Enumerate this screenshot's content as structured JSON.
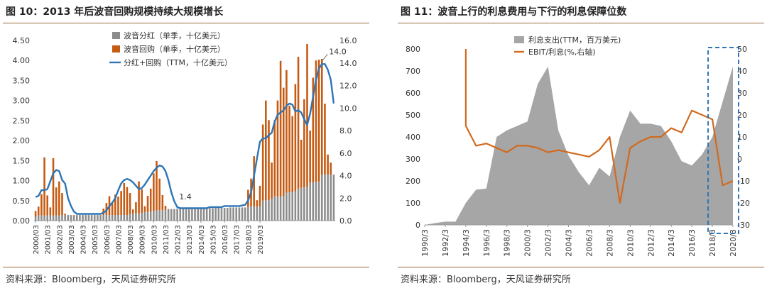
{
  "left": {
    "title": "图 10：2013 年后波音回购规模持续大规模增长",
    "source": "资料来源：Bloomberg，天风证券研究所",
    "chart_data": {
      "type": "bar",
      "stacked": true,
      "series": [
        {
          "name": "波音分红（单季，十亿美元）",
          "axis": "left",
          "color": "#8c8c8c",
          "values": [
            0.1,
            0.13,
            0.13,
            0.13,
            0.13,
            0.13,
            0.13,
            0.13,
            0.13,
            0.14,
            0.14,
            0.14,
            0.14,
            0.14,
            0.14,
            0.14,
            0.14,
            0.14,
            0.14,
            0.14,
            0.14,
            0.14,
            0.14,
            0.14,
            0.14,
            0.14,
            0.14,
            0.14,
            0.14,
            0.14,
            0.14,
            0.14,
            0.16,
            0.18,
            0.18,
            0.18,
            0.19,
            0.22,
            0.22,
            0.22,
            0.24,
            0.26,
            0.26,
            0.26,
            0.27,
            0.29,
            0.29,
            0.29,
            0.3,
            0.3,
            0.3,
            0.3,
            0.3,
            0.3,
            0.3,
            0.3,
            0.3,
            0.31,
            0.31,
            0.31,
            0.31,
            0.32,
            0.32,
            0.32,
            0.32,
            0.32,
            0.33,
            0.33,
            0.33,
            0.33,
            0.33,
            0.33,
            0.34,
            0.35,
            0.35,
            0.35,
            0.36,
            0.5,
            0.51,
            0.51,
            0.55,
            0.61,
            0.6,
            0.6,
            0.62,
            0.7,
            0.71,
            0.71,
            0.73,
            0.8,
            0.82,
            0.83,
            0.84,
            0.95,
            0.96,
            0.96,
            0.98,
            1.15,
            1.15,
            1.15,
            1.15,
            1.15
          ]
        },
        {
          "name": "波音回购（单季，十亿美元）",
          "axis": "left",
          "color": "#c55a11",
          "values": [
            0.14,
            0.22,
            0.53,
            1.45,
            0.5,
            0.2,
            1.43,
            0.7,
            0.85,
            0.55,
            0.03,
            0.0,
            0.0,
            0.0,
            0.0,
            0.0,
            0.0,
            0.0,
            0.0,
            0.0,
            0.0,
            0.0,
            0.0,
            0.16,
            0.3,
            0.47,
            0.3,
            0.51,
            0.46,
            0.6,
            0.8,
            0.7,
            0.53,
            0.1,
            0.28,
            0.8,
            0.59,
            0.14,
            0.4,
            0.58,
            0.94,
            1.23,
            0.79,
            0.38,
            0.1,
            0.0,
            0.0,
            0.0,
            0.0,
            0.0,
            0.0,
            0.0,
            0.0,
            0.0,
            0.0,
            0.0,
            0.0,
            0.0,
            0.0,
            0.0,
            0.0,
            0.0,
            0.0,
            0.0,
            0.0,
            0.0,
            0.0,
            0.0,
            0.0,
            0.0,
            0.0,
            0.0,
            0.43,
            0.7,
            1.26,
            0.16,
            0.51,
            1.9,
            2.49,
            2.0,
            0.9,
            1.9,
            2.4,
            3.39,
            2.7,
            3.06,
            2.16,
            1.9,
            2.68,
            3.29,
            1.2,
            2.2,
            3.57,
            1.3,
            2.61,
            3.04,
            3.04,
            2.89,
            1.77,
            0.5,
            0.3,
            0.0
          ]
        },
        {
          "name": "分红+回购（TTM，十亿美元）",
          "axis": "right",
          "type": "line",
          "color": "#2e75b6",
          "values": [
            2.1,
            2.2,
            2.7,
            2.7,
            2.8,
            3.5,
            4.2,
            4.5,
            4.4,
            3.6,
            3.3,
            2.0,
            1.3,
            0.8,
            0.6,
            0.6,
            0.6,
            0.6,
            0.6,
            0.6,
            0.6,
            0.6,
            0.6,
            0.7,
            0.9,
            1.3,
            1.6,
            2.0,
            2.7,
            3.3,
            3.6,
            3.7,
            3.6,
            3.4,
            3.1,
            2.8,
            2.9,
            3.2,
            3.6,
            4.0,
            4.4,
            4.7,
            4.9,
            4.8,
            4.4,
            3.6,
            2.5,
            1.7,
            1.2,
            1.1,
            1.1,
            1.1,
            1.1,
            1.1,
            1.1,
            1.1,
            1.1,
            1.1,
            1.1,
            1.2,
            1.2,
            1.2,
            1.2,
            1.2,
            1.3,
            1.3,
            1.3,
            1.3,
            1.3,
            1.3,
            1.35,
            1.4,
            1.8,
            2.5,
            4.0,
            5.5,
            7.0,
            7.3,
            7.3,
            7.6,
            7.8,
            8.8,
            9.4,
            9.6,
            9.8,
            10.2,
            10.4,
            10.3,
            9.7,
            9.8,
            9.6,
            9.0,
            8.5,
            9.5,
            11.0,
            12.5,
            13.5,
            13.9,
            13.9,
            13.4,
            12.5,
            10.4
          ]
        }
      ],
      "categories": [
        "2000/03",
        "2000/06",
        "2000/09",
        "2000/12",
        "2001/03",
        "2001/06",
        "2001/09",
        "2001/12",
        "2002/03",
        "2002/06",
        "2002/09",
        "2002/12",
        "2003/03",
        "2003/06",
        "2003/09",
        "2003/12",
        "2004/03",
        "2004/06",
        "2004/09",
        "2004/12",
        "2005/03",
        "2005/06",
        "2005/09",
        "2005/12",
        "2006/03",
        "2006/06",
        "2006/09",
        "2006/12",
        "2007/03",
        "2007/06",
        "2007/09",
        "2007/12",
        "2008/03",
        "2008/06",
        "2008/09",
        "2008/12",
        "2009/03",
        "2009/06",
        "2009/09",
        "2009/12",
        "2010/03",
        "2010/06",
        "2010/09",
        "2010/12",
        "2011/03",
        "2011/06",
        "2011/09",
        "2011/12",
        "2012/03",
        "2012/06",
        "2012/09",
        "2012/12",
        "2013/03",
        "2013/06",
        "2013/09",
        "2013/12",
        "2014/03",
        "2014/06",
        "2014/09",
        "2014/12",
        "2015/03",
        "2015/06",
        "2015/09",
        "2015/12",
        "2016/03",
        "2016/06",
        "2016/09",
        "2016/12",
        "2017/03",
        "2017/06",
        "2017/09",
        "2017/12",
        "2018/03",
        "2018/06",
        "2018/09",
        "2018/12",
        "2019/03",
        "2019/06",
        "2019/09",
        "2019/12",
        "2020/03",
        "2020/06",
        "2020/09",
        "2020/12",
        "2021/03",
        "2021/06",
        "2021/09",
        "2021/12",
        "2022/03",
        "2022/06",
        "2022/09",
        "2022/12",
        "2023/03",
        "2023/06",
        "2023/09",
        "2023/12",
        "2024/03",
        "2024/06",
        "2024/09",
        "2024/12",
        "2025/03",
        "2025/06"
      ],
      "xtick_labels": [
        "2000/03",
        "2001/03",
        "2002/03",
        "2003/03",
        "2004/03",
        "2005/03",
        "2006/03",
        "2007/03",
        "2008/03",
        "2009/03",
        "2010/03",
        "2011/03",
        "2012/03",
        "2013/03",
        "2014/03",
        "2015/03",
        "2016/03",
        "2017/03",
        "2018/03",
        "2019/03"
      ],
      "ylim_left": [
        0,
        4.5
      ],
      "yticks_left": [
        "0.00",
        "0.50",
        "1.00",
        "1.50",
        "2.00",
        "2.50",
        "3.00",
        "3.50",
        "4.00",
        "4.50"
      ],
      "ylim_right": [
        0,
        16
      ],
      "yticks_right": [
        "0.0",
        "2.0",
        "4.0",
        "6.0",
        "8.0",
        "10.0",
        "12.0",
        "14.0",
        "16.0"
      ],
      "annotations": [
        "14.0",
        "1.4"
      ],
      "legend": "top-center"
    }
  },
  "right": {
    "title": "图 11：波音上行的利息费用与下行的利息保障位数",
    "source": "资料来源：Bloomberg，天风证券研究所",
    "chart_data": {
      "type": "area",
      "x": [
        "1990/3",
        "1991/3",
        "1992/3",
        "1993/3",
        "1994/3",
        "1995/3",
        "1996/3",
        "1997/3",
        "1998/3",
        "1999/3",
        "2000/3",
        "2001/3",
        "2002/3",
        "2003/3",
        "2004/3",
        "2005/3",
        "2006/3",
        "2007/3",
        "2008/3",
        "2009/3",
        "2010/3",
        "2011/3",
        "2012/3",
        "2013/3",
        "2014/3",
        "2015/3",
        "2016/3",
        "2017/3",
        "2018/3",
        "2019/3",
        "2020/3"
      ],
      "xtick_labels": [
        "1990/3",
        "1992/3",
        "1994/3",
        "1996/3",
        "1998/3",
        "2000/3",
        "2002/3",
        "2004/3",
        "2006/3",
        "2008/3",
        "2010/3",
        "2012/3",
        "2014/3",
        "2016/3",
        "2018/3",
        "2020/3"
      ],
      "series": [
        {
          "name": "利息支出(TTM，百万美元)",
          "axis": "left",
          "type": "area",
          "color": "#a6a6a6",
          "values": [
            0,
            8,
            15,
            15,
            100,
            160,
            165,
            400,
            430,
            450,
            470,
            640,
            720,
            430,
            315,
            240,
            180,
            260,
            220,
            400,
            520,
            460,
            460,
            450,
            380,
            290,
            270,
            320,
            400,
            560,
            720
          ]
        },
        {
          "name": "EBIT/利息(%,右轴)",
          "axis": "right",
          "type": "line",
          "color": "#d2691e",
          "values": [
            null,
            null,
            null,
            null,
            15,
            6,
            7,
            5,
            3,
            6,
            6,
            5,
            3,
            4,
            3,
            2,
            1,
            4,
            10,
            -20,
            5,
            8,
            10,
            10,
            14,
            12,
            22,
            20,
            18,
            -12,
            -10
          ]
        }
      ],
      "ylim_left": [
        0,
        800
      ],
      "yticks_left": [
        "0",
        "100",
        "200",
        "300",
        "400",
        "500",
        "600",
        "700",
        "800"
      ],
      "ylim_right": [
        -30,
        50
      ],
      "yticks_right": [
        "-30",
        "-20",
        "-10",
        "0",
        "10",
        "20",
        "30",
        "40",
        "50"
      ],
      "highlight_box": "2018/3 to 2020/3",
      "legend": "top-left"
    }
  }
}
